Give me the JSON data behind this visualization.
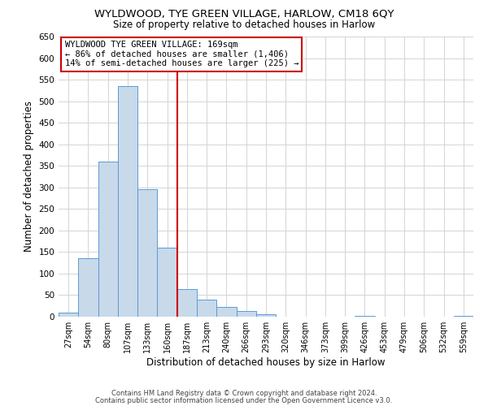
{
  "title": "WYLDWOOD, TYE GREEN VILLAGE, HARLOW, CM18 6QY",
  "subtitle": "Size of property relative to detached houses in Harlow",
  "xlabel": "Distribution of detached houses by size in Harlow",
  "ylabel": "Number of detached properties",
  "bar_color": "#c8d9ea",
  "bar_edge_color": "#5b9bd5",
  "background_color": "#ffffff",
  "grid_color": "#d4d4d4",
  "categories": [
    "27sqm",
    "54sqm",
    "80sqm",
    "107sqm",
    "133sqm",
    "160sqm",
    "187sqm",
    "213sqm",
    "240sqm",
    "266sqm",
    "293sqm",
    "320sqm",
    "346sqm",
    "373sqm",
    "399sqm",
    "426sqm",
    "453sqm",
    "479sqm",
    "506sqm",
    "532sqm",
    "559sqm"
  ],
  "values": [
    10,
    135,
    360,
    535,
    295,
    160,
    65,
    40,
    22,
    14,
    5,
    0,
    0,
    0,
    0,
    2,
    0,
    0,
    0,
    0,
    2
  ],
  "ylim": [
    0,
    650
  ],
  "yticks": [
    0,
    50,
    100,
    150,
    200,
    250,
    300,
    350,
    400,
    450,
    500,
    550,
    600,
    650
  ],
  "vline_x": 5.5,
  "vline_color": "#cc0000",
  "annotation_title": "WYLDWOOD TYE GREEN VILLAGE: 169sqm",
  "annotation_line1": "← 86% of detached houses are smaller (1,406)",
  "annotation_line2": "14% of semi-detached houses are larger (225) →",
  "annotation_box_color": "#ffffff",
  "annotation_box_edge": "#cc0000",
  "footer1": "Contains HM Land Registry data © Crown copyright and database right 2024.",
  "footer2": "Contains public sector information licensed under the Open Government Licence v3.0."
}
